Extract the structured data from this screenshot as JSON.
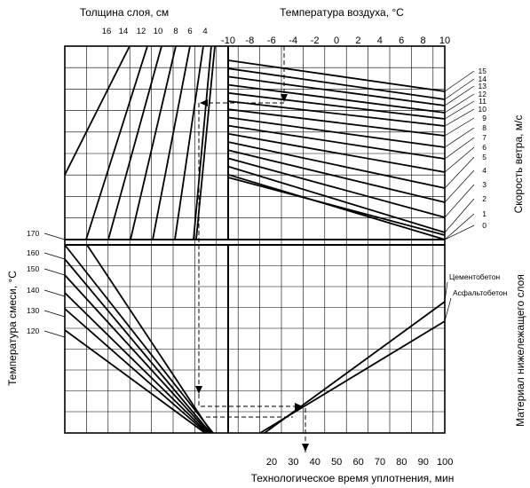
{
  "top_left": {
    "title": "Толщина слоя, см",
    "ticks": [
      "16",
      "14",
      "12",
      "10",
      "8",
      "6",
      "4"
    ]
  },
  "top_right": {
    "title": "Температура воздуха, °С",
    "ticks": [
      "-10",
      "-8",
      "-6",
      "-4",
      "-2",
      "0",
      "2",
      "4",
      "6",
      "8",
      "10"
    ]
  },
  "wind": {
    "title": "Скорость ветра, м/с",
    "ticks": [
      "15",
      "14",
      "13",
      "12",
      "11",
      "10",
      "9",
      "8",
      "7",
      "6",
      "5",
      "4",
      "3",
      "2",
      "1",
      "0"
    ]
  },
  "mix_temp": {
    "title": "Температура смеси, °С",
    "ticks": [
      "170",
      "160",
      "150",
      "140",
      "130",
      "120"
    ]
  },
  "material": {
    "title": "Материал нижележащего слоя",
    "labels": [
      "Цементобетон",
      "Асфальтобетон"
    ]
  },
  "time": {
    "title": "Технологическое время уплотнения, мин",
    "ticks": [
      "20",
      "30",
      "40",
      "50",
      "60",
      "70",
      "80",
      "90",
      "100"
    ]
  }
}
